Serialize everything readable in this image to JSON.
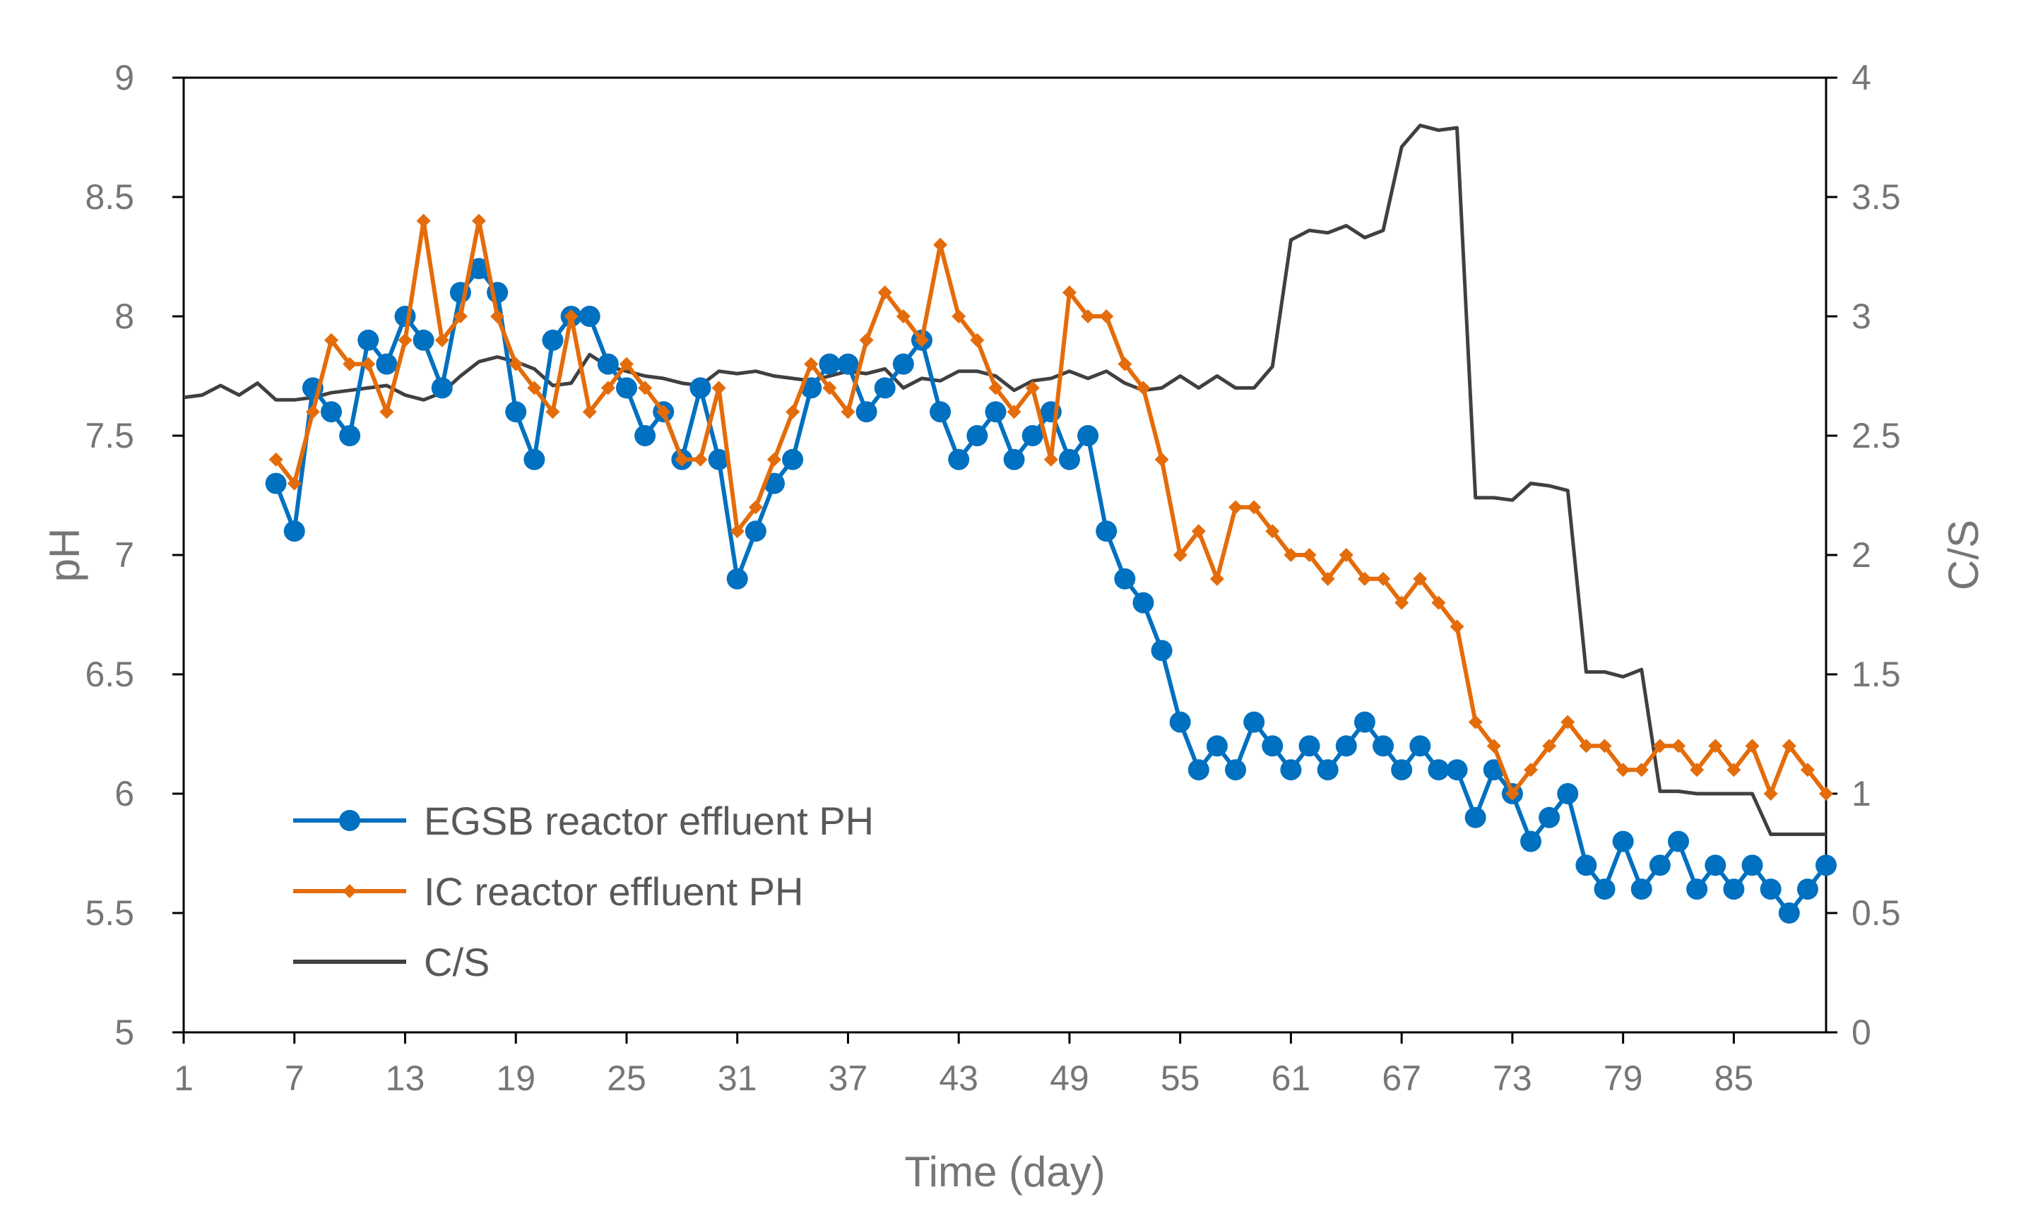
{
  "chart_data": {
    "type": "line",
    "xlabel": "Time (day)",
    "ylabel_left": "pH",
    "ylabel_right": "C/S",
    "x_ticks": [
      "1",
      "7",
      "13",
      "19",
      "25",
      "31",
      "37",
      "43",
      "49",
      "55",
      "61",
      "67",
      "73",
      "79",
      "85"
    ],
    "y_left_ticks": [
      "9",
      "8.5",
      "8",
      "7.5",
      "7",
      "6.5",
      "6",
      "5.5",
      "5"
    ],
    "y_right_ticks": [
      "4",
      "3.5",
      "3",
      "2.5",
      "2",
      "1.5",
      "1",
      "0.5",
      "0"
    ],
    "xlim": [
      1,
      90
    ],
    "ylim_left": [
      5,
      9
    ],
    "ylim_right": [
      0,
      4
    ],
    "legend": [
      "EGSB reactor effluent PH",
      "IC reactor effluent PH",
      "C/S"
    ],
    "colors": {
      "egsb": "#0070C0",
      "ic": "#E46C0A",
      "cs": "#404040",
      "axis": "#000000",
      "text": "#767676"
    },
    "series": [
      {
        "name": "EGSB reactor effluent PH",
        "axis": "left",
        "marker": "circle",
        "x": [
          6,
          7,
          8,
          9,
          10,
          11,
          12,
          13,
          14,
          15,
          16,
          17,
          18,
          19,
          20,
          21,
          22,
          23,
          24,
          25,
          26,
          27,
          28,
          29,
          30,
          31,
          32,
          33,
          34,
          35,
          36,
          37,
          38,
          39,
          40,
          41,
          42,
          43,
          44,
          45,
          46,
          47,
          48,
          49,
          50,
          51,
          52,
          53,
          54,
          55,
          56,
          57,
          58,
          59,
          60,
          61,
          62,
          63,
          64,
          65,
          66,
          67,
          68,
          69,
          70,
          71,
          72,
          73,
          74,
          75,
          76,
          77,
          78,
          79,
          80,
          81,
          82,
          83,
          84,
          85,
          86,
          87,
          88,
          89,
          90
        ],
        "values": [
          7.3,
          7.1,
          7.7,
          7.6,
          7.5,
          7.9,
          7.8,
          8.0,
          7.9,
          7.7,
          8.1,
          8.2,
          8.1,
          7.6,
          7.4,
          7.9,
          8.0,
          8.0,
          7.8,
          7.7,
          7.5,
          7.6,
          7.4,
          7.7,
          7.4,
          6.9,
          7.1,
          7.3,
          7.4,
          7.7,
          7.8,
          7.8,
          7.6,
          7.7,
          7.8,
          7.9,
          7.6,
          7.4,
          7.5,
          7.6,
          7.4,
          7.5,
          7.6,
          7.4,
          7.5,
          7.1,
          6.9,
          6.8,
          6.6,
          6.3,
          6.1,
          6.2,
          6.1,
          6.3,
          6.2,
          6.1,
          6.2,
          6.1,
          6.2,
          6.3,
          6.2,
          6.1,
          6.2,
          6.1,
          6.1,
          5.9,
          6.1,
          6.0,
          5.8,
          5.9,
          6.0,
          5.7,
          5.6,
          5.8,
          5.6,
          5.7,
          5.8,
          5.6,
          5.7,
          5.6,
          5.7,
          5.6,
          5.5,
          5.6,
          5.7
        ]
      },
      {
        "name": "IC reactor effluent PH",
        "axis": "left",
        "marker": "diamond",
        "x": [
          6,
          7,
          8,
          9,
          10,
          11,
          12,
          13,
          14,
          15,
          16,
          17,
          18,
          19,
          20,
          21,
          22,
          23,
          24,
          25,
          26,
          27,
          28,
          29,
          30,
          31,
          32,
          33,
          34,
          35,
          36,
          37,
          38,
          39,
          40,
          41,
          42,
          43,
          44,
          45,
          46,
          47,
          48,
          49,
          50,
          51,
          52,
          53,
          54,
          55,
          56,
          57,
          58,
          59,
          60,
          61,
          62,
          63,
          64,
          65,
          66,
          67,
          68,
          69,
          70,
          71,
          72,
          73,
          74,
          75,
          76,
          77,
          78,
          79,
          80,
          81,
          82,
          83,
          84,
          85,
          86,
          87,
          88,
          89,
          90
        ],
        "values": [
          7.4,
          7.3,
          7.6,
          7.9,
          7.8,
          7.8,
          7.6,
          7.9,
          8.4,
          7.9,
          8.0,
          8.4,
          8.0,
          7.8,
          7.7,
          7.6,
          8.0,
          7.6,
          7.7,
          7.8,
          7.7,
          7.6,
          7.4,
          7.4,
          7.7,
          7.1,
          7.2,
          7.4,
          7.6,
          7.8,
          7.7,
          7.6,
          7.9,
          8.1,
          8.0,
          7.9,
          8.3,
          8.0,
          7.9,
          7.7,
          7.6,
          7.7,
          7.4,
          8.1,
          8.0,
          8.0,
          7.8,
          7.7,
          7.4,
          7.0,
          7.1,
          6.9,
          7.2,
          7.2,
          7.1,
          7.0,
          7.0,
          6.9,
          7.0,
          6.9,
          6.9,
          6.8,
          6.9,
          6.8,
          6.7,
          6.3,
          6.2,
          6.0,
          6.1,
          6.2,
          6.3,
          6.2,
          6.2,
          6.1,
          6.1,
          6.2,
          6.2,
          6.1,
          6.2,
          6.1,
          6.2,
          6.0,
          6.2,
          6.1,
          6.0
        ]
      },
      {
        "name": "C/S",
        "axis": "right",
        "marker": "none",
        "x": [
          1,
          2,
          3,
          4,
          5,
          6,
          7,
          8,
          9,
          10,
          11,
          12,
          13,
          14,
          15,
          16,
          17,
          18,
          19,
          20,
          21,
          22,
          23,
          24,
          25,
          26,
          27,
          28,
          29,
          30,
          31,
          32,
          33,
          34,
          35,
          36,
          37,
          38,
          39,
          40,
          41,
          42,
          43,
          44,
          45,
          46,
          47,
          48,
          49,
          50,
          51,
          52,
          53,
          54,
          55,
          56,
          57,
          58,
          59,
          60,
          61,
          62,
          63,
          64,
          65,
          66,
          67,
          68,
          69,
          70,
          71,
          72,
          73,
          74,
          75,
          76,
          77,
          78,
          79,
          80,
          81,
          82,
          83,
          84,
          85,
          86,
          87,
          88,
          89,
          90
        ],
        "values": [
          2.66,
          2.67,
          2.71,
          2.67,
          2.72,
          2.65,
          2.65,
          2.66,
          2.68,
          2.69,
          2.7,
          2.71,
          2.67,
          2.65,
          2.68,
          2.75,
          2.81,
          2.83,
          2.81,
          2.78,
          2.71,
          2.72,
          2.84,
          2.79,
          2.77,
          2.75,
          2.74,
          2.72,
          2.71,
          2.77,
          2.76,
          2.77,
          2.75,
          2.74,
          2.73,
          2.75,
          2.77,
          2.76,
          2.78,
          2.7,
          2.74,
          2.73,
          2.77,
          2.77,
          2.75,
          2.69,
          2.73,
          2.74,
          2.77,
          2.74,
          2.77,
          2.72,
          2.69,
          2.7,
          2.75,
          2.7,
          2.75,
          2.7,
          2.7,
          2.79,
          3.32,
          3.36,
          3.35,
          3.38,
          3.33,
          3.36,
          3.71,
          3.8,
          3.78,
          3.79,
          2.24,
          2.24,
          2.23,
          2.3,
          2.29,
          2.27,
          1.51,
          1.51,
          1.49,
          1.52,
          1.01,
          1.01,
          1.0,
          1.0,
          1.0,
          1.0,
          0.83,
          0.83,
          0.83,
          0.83
        ]
      }
    ]
  }
}
